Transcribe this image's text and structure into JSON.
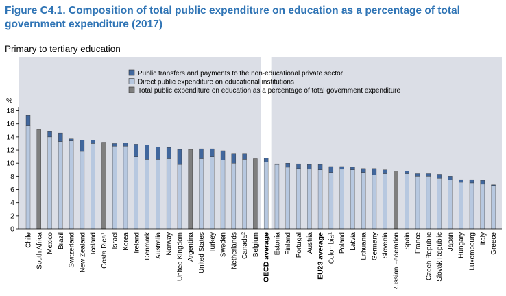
{
  "figure": {
    "title": "Figure C4.1. Composition of total public expenditure on education as a percentage of total government expenditure (2017)",
    "subtitle": "Primary to tertiary education"
  },
  "colors": {
    "transfers": "#41679d",
    "direct": "#b7c8e0",
    "total": "#7f7f7f",
    "highlight": "#ffffff",
    "background": "#dbdee6"
  },
  "chart_data": {
    "type": "bar",
    "stacked": true,
    "ylabel": "%",
    "ylim": [
      0,
      18
    ],
    "yticks": [
      0,
      2,
      4,
      6,
      8,
      10,
      12,
      14,
      16,
      18
    ],
    "grid": false,
    "legend_position": "top-right",
    "legend": [
      "Public transfers and payments to the non-educational private sector",
      "Direct public expenditure on educational institutions",
      "Total public expenditure on education as a percentage of total government expenditure"
    ],
    "categories": [
      {
        "label": "Chile",
        "sup": ""
      },
      {
        "label": "South Africa",
        "sup": ""
      },
      {
        "label": "Mexico",
        "sup": ""
      },
      {
        "label": "Brazil",
        "sup": ""
      },
      {
        "label": "Switzerland",
        "sup": ""
      },
      {
        "label": "New Zealand",
        "sup": ""
      },
      {
        "label": "Iceland",
        "sup": ""
      },
      {
        "label": "Costa Rica",
        "sup": "1"
      },
      {
        "label": "Israel",
        "sup": ""
      },
      {
        "label": "Korea",
        "sup": ""
      },
      {
        "label": "Ireland",
        "sup": ""
      },
      {
        "label": "Denmark",
        "sup": ""
      },
      {
        "label": "Australia",
        "sup": ""
      },
      {
        "label": "Norway",
        "sup": ""
      },
      {
        "label": "United Kingdom",
        "sup": ""
      },
      {
        "label": "Argentina",
        "sup": ""
      },
      {
        "label": "United States",
        "sup": ""
      },
      {
        "label": "Turkey",
        "sup": ""
      },
      {
        "label": "Sweden",
        "sup": ""
      },
      {
        "label": "Netherlands",
        "sup": ""
      },
      {
        "label": "Canada",
        "sup": "2"
      },
      {
        "label": "Belgium",
        "sup": ""
      },
      {
        "label": "OECD average",
        "sup": "",
        "bold": true,
        "highlight": true
      },
      {
        "label": "Estonia",
        "sup": ""
      },
      {
        "label": "Finland",
        "sup": ""
      },
      {
        "label": "Portugal",
        "sup": ""
      },
      {
        "label": "Austria",
        "sup": ""
      },
      {
        "label": "EU23 average",
        "sup": "",
        "bold": true
      },
      {
        "label": "Colombia",
        "sup": "1"
      },
      {
        "label": "Poland",
        "sup": ""
      },
      {
        "label": "Latvia",
        "sup": ""
      },
      {
        "label": "Lithuania",
        "sup": ""
      },
      {
        "label": "Germany",
        "sup": ""
      },
      {
        "label": "Slovenia",
        "sup": ""
      },
      {
        "label": "Russian Federation",
        "sup": ""
      },
      {
        "label": "Spain",
        "sup": ""
      },
      {
        "label": "France",
        "sup": ""
      },
      {
        "label": "Czech Republic",
        "sup": ""
      },
      {
        "label": "Slovak Republic",
        "sup": ""
      },
      {
        "label": "Japan",
        "sup": ""
      },
      {
        "label": "Hungary",
        "sup": ""
      },
      {
        "label": "Luxembourg",
        "sup": ""
      },
      {
        "label": "Italy",
        "sup": ""
      },
      {
        "label": "Greece",
        "sup": ""
      }
    ],
    "series": [
      {
        "name": "Direct public expenditure on educational institutions",
        "values": [
          15.7,
          0,
          14.0,
          13.3,
          13.4,
          11.8,
          13.0,
          0,
          12.6,
          12.6,
          11.0,
          10.6,
          10.6,
          10.7,
          9.8,
          0,
          10.7,
          11.0,
          10.5,
          10.0,
          10.6,
          0,
          10.2,
          9.8,
          9.4,
          9.2,
          9.1,
          9.0,
          8.6,
          9.1,
          9.0,
          8.6,
          8.2,
          8.4,
          0,
          8.4,
          8.0,
          8.0,
          7.7,
          7.5,
          7.1,
          7.0,
          6.8,
          6.6
        ]
      },
      {
        "name": "Public transfers and payments to the non-educational private sector",
        "values": [
          1.6,
          0,
          0.9,
          1.3,
          0.3,
          1.7,
          0.5,
          0,
          0.4,
          0.5,
          1.9,
          2.2,
          1.9,
          1.7,
          2.3,
          0,
          1.5,
          1.2,
          1.4,
          1.4,
          0.8,
          0,
          0.6,
          0.1,
          0.6,
          0.7,
          0.7,
          0.8,
          0.9,
          0.4,
          0.4,
          0.6,
          1.0,
          0.6,
          0,
          0.4,
          0.4,
          0.4,
          0.6,
          0.5,
          0.4,
          0.5,
          0.6,
          0.1
        ]
      },
      {
        "name": "Total public expenditure on education as a percentage of total government expenditure",
        "values": [
          0,
          15.2,
          0,
          0,
          0,
          0,
          0,
          13.2,
          0,
          0,
          0,
          0,
          0,
          0,
          0,
          12.1,
          0,
          0,
          0,
          0,
          0,
          10.7,
          0,
          0,
          0,
          0,
          0,
          0,
          0,
          0,
          0,
          0,
          0,
          0,
          8.8,
          0,
          0,
          0,
          0,
          0,
          0,
          0,
          0,
          0
        ]
      }
    ]
  }
}
